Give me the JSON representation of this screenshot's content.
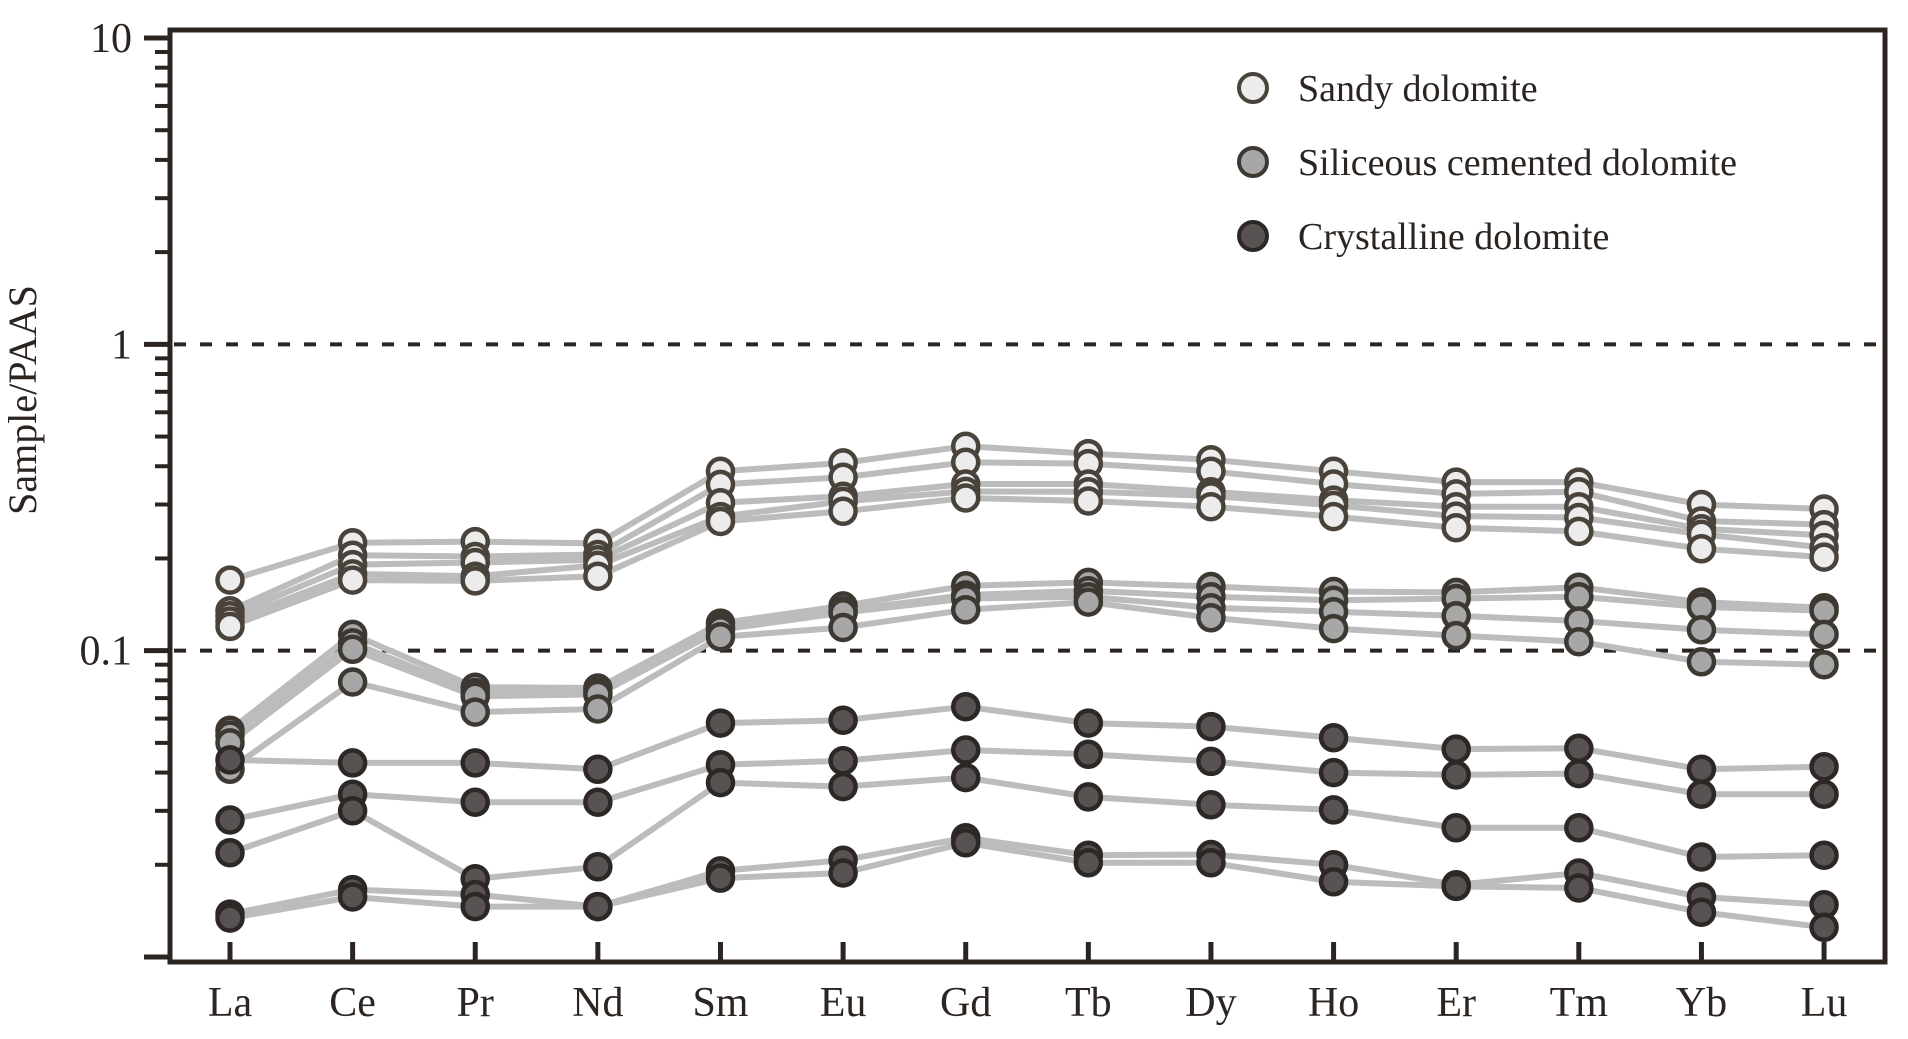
{
  "colors": {
    "axis": "#2b2420",
    "text": "#2b2420",
    "line": "#bcbcbc",
    "background": "#ffffff",
    "sandy_fill": "#ececec",
    "sandy_stroke": "#4a433c",
    "siliceous_fill": "#a7a7a7",
    "siliceous_stroke": "#3e3833",
    "crystalline_fill": "#585252",
    "crystalline_stroke": "#2d2825"
  },
  "chart_data": {
    "type": "line",
    "title": "",
    "xlabel": "",
    "ylabel": "Sample/PAAS",
    "y_scale": "log",
    "ylim": [
      0.01,
      10
    ],
    "grid": "off",
    "legend_position": "top-right-inside",
    "x_categories": [
      "La",
      "Ce",
      "Pr",
      "Nd",
      "Sm",
      "Eu",
      "Gd",
      "Tb",
      "Dy",
      "Ho",
      "Er",
      "Tm",
      "Yb",
      "Lu"
    ],
    "y_major_tick_labels": [
      {
        "value": 10,
        "label": "10"
      },
      {
        "value": 1,
        "label": "1"
      },
      {
        "value": 0.1,
        "label": "0.1"
      }
    ],
    "reference_lines": [
      1,
      0.1
    ],
    "legend": [
      {
        "label": "Sandy dolomite",
        "group": "sandy"
      },
      {
        "label": "Siliceous cemented dolomite",
        "group": "siliceous"
      },
      {
        "label": "Crystalline dolomite",
        "group": "crystalline"
      }
    ],
    "series": [
      {
        "name": "sandy-1",
        "group": "sandy",
        "values": [
          0.17,
          0.225,
          0.227,
          0.224,
          0.385,
          0.41,
          0.465,
          0.44,
          0.42,
          0.385,
          0.355,
          0.355,
          0.3,
          0.29
        ]
      },
      {
        "name": "sandy-2",
        "group": "sandy",
        "values": [
          0.135,
          0.205,
          0.203,
          0.206,
          0.349,
          0.368,
          0.412,
          0.408,
          0.385,
          0.35,
          0.325,
          0.33,
          0.265,
          0.258
        ]
      },
      {
        "name": "sandy-3",
        "group": "sandy",
        "values": [
          0.13,
          0.191,
          0.194,
          0.198,
          0.304,
          0.319,
          0.35,
          0.35,
          0.33,
          0.31,
          0.295,
          0.295,
          0.25,
          0.238
        ]
      },
      {
        "name": "sandy-4",
        "group": "sandy",
        "values": [
          0.125,
          0.178,
          0.175,
          0.19,
          0.274,
          0.307,
          0.331,
          0.33,
          0.32,
          0.298,
          0.275,
          0.272,
          0.24,
          0.217
        ]
      },
      {
        "name": "sandy-5",
        "group": "sandy",
        "values": [
          0.12,
          0.17,
          0.169,
          0.175,
          0.264,
          0.285,
          0.315,
          0.308,
          0.295,
          0.274,
          0.252,
          0.245,
          0.215,
          0.202
        ]
      },
      {
        "name": "siliceous-1",
        "group": "siliceous",
        "values": [
          0.055,
          0.113,
          0.076,
          0.0755,
          0.123,
          0.14,
          0.163,
          0.167,
          0.162,
          0.156,
          0.155,
          0.161,
          0.144,
          0.138
        ]
      },
      {
        "name": "siliceous-2",
        "group": "siliceous",
        "values": [
          0.053,
          0.106,
          0.073,
          0.073,
          0.119,
          0.135,
          0.152,
          0.157,
          0.15,
          0.146,
          0.148,
          0.15,
          0.139,
          0.135
        ]
      },
      {
        "name": "siliceous-3",
        "group": "siliceous",
        "values": [
          0.05,
          0.101,
          0.071,
          0.072,
          0.117,
          0.133,
          0.148,
          0.15,
          0.138,
          0.134,
          0.13,
          0.125,
          0.117,
          0.113
        ]
      },
      {
        "name": "siliceous-4",
        "group": "siliceous",
        "values": [
          0.041,
          0.079,
          0.063,
          0.0645,
          0.111,
          0.119,
          0.136,
          0.144,
          0.128,
          0.118,
          0.112,
          0.107,
          0.092,
          0.09
        ]
      },
      {
        "name": "crystalline-1",
        "group": "crystalline",
        "values": [
          0.044,
          0.043,
          0.043,
          0.041,
          0.058,
          0.0593,
          0.0656,
          0.058,
          0.0565,
          0.052,
          0.0477,
          0.048,
          0.041,
          0.0418
        ]
      },
      {
        "name": "crystalline-2",
        "group": "crystalline",
        "values": [
          0.028,
          0.034,
          0.032,
          0.032,
          0.0424,
          0.0437,
          0.0474,
          0.0459,
          0.0435,
          0.04,
          0.0393,
          0.0397,
          0.034,
          0.034
        ]
      },
      {
        "name": "crystalline-3",
        "group": "crystalline",
        "values": [
          0.0219,
          0.03,
          0.018,
          0.0197,
          0.0371,
          0.036,
          0.0385,
          0.0333,
          0.0314,
          0.0302,
          0.0264,
          0.0264,
          0.0212,
          0.0215
        ]
      },
      {
        "name": "crystalline-4",
        "group": "crystalline",
        "values": [
          0.0138,
          0.0166,
          0.016,
          0.0146,
          0.0191,
          0.0207,
          0.0245,
          0.0215,
          0.0216,
          0.02,
          0.0172,
          0.0188,
          0.0157,
          0.0148
        ]
      },
      {
        "name": "crystalline-5",
        "group": "crystalline",
        "values": [
          0.0134,
          0.0157,
          0.0146,
          0.0146,
          0.0181,
          0.0188,
          0.0236,
          0.0203,
          0.0203,
          0.0176,
          0.017,
          0.0168,
          0.014,
          0.0125
        ]
      }
    ]
  }
}
